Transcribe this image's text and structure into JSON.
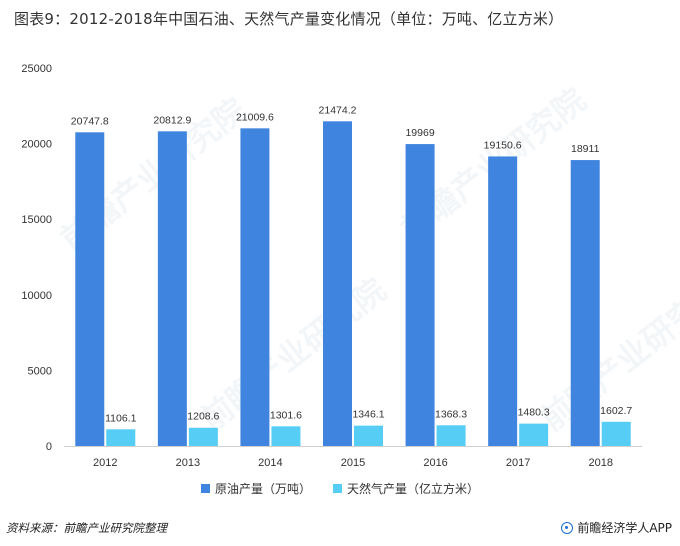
{
  "title": "图表9：2012-2018年中国石油、天然气产量变化情况（单位：万吨、亿立方米）",
  "source": "资料来源：前瞻产业研究院整理",
  "brand": "前瞻经济学人APP",
  "watermark": "前瞻产业研究院",
  "chart_data": {
    "type": "bar",
    "categories": [
      "2012",
      "2013",
      "2014",
      "2015",
      "2016",
      "2017",
      "2018"
    ],
    "series": [
      {
        "name": "原油产量（万吨）",
        "color": "#3f85e0",
        "values": [
          20747.8,
          20812.9,
          21009.6,
          21474.2,
          19969,
          19150.6,
          18911
        ],
        "labels": [
          "20747.8",
          "20812.9",
          "21009.6",
          "21474.2",
          "19969",
          "19150.6",
          "18911"
        ]
      },
      {
        "name": "天然气产量（亿立方米）",
        "color": "#55cdf4",
        "values": [
          1106.1,
          1208.6,
          1301.6,
          1346.1,
          1368.3,
          1480.3,
          1602.7
        ],
        "labels": [
          "1106.1",
          "1208.6",
          "1301.6",
          "1346.1",
          "1368.3",
          "1480.3",
          "1602.7"
        ]
      }
    ],
    "yticks": [
      "0",
      "5000",
      "10000",
      "15000",
      "20000",
      "25000"
    ],
    "ylim": [
      0,
      25000
    ],
    "grid": false,
    "legend_position": "bottom"
  }
}
